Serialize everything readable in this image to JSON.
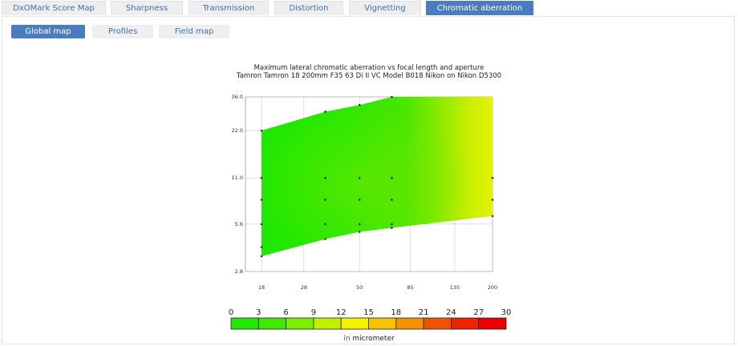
{
  "tabs": [
    {
      "label": "DxOMark Score Map",
      "active": false
    },
    {
      "label": "Sharpness",
      "active": false
    },
    {
      "label": "Transmission",
      "active": false
    },
    {
      "label": "Distortion",
      "active": false
    },
    {
      "label": "Vignetting",
      "active": false
    },
    {
      "label": "Chromatic aberration",
      "active": true
    }
  ],
  "subtabs": [
    {
      "label": "Global map",
      "active": true
    },
    {
      "label": "Profiles",
      "active": false
    },
    {
      "label": "Field map",
      "active": false
    }
  ],
  "unit_prefix": "in",
  "unit_suffix": " micrometer",
  "chart_data": {
    "type": "heatmap",
    "title": "Maximum lateral chromatic aberration vs focal length and aperture",
    "subtitle": "Tamron Tamron 18 200mm F35 63 Di II VC Model B018 Nikon on Nikon D5300",
    "xlabel": "",
    "ylabel": "",
    "x_scale": "log",
    "y_scale": "log",
    "x_ticks": [
      18,
      28,
      50,
      85,
      135,
      200
    ],
    "y_ticks": [
      2.8,
      5.6,
      11.0,
      22.0,
      36.0
    ],
    "y_tick_labels": [
      "2.8",
      "5.6",
      "11.0",
      "22.0",
      "36.0"
    ],
    "xlim": [
      18,
      200
    ],
    "ylim": [
      2.8,
      36.0
    ],
    "grid": true,
    "region": {
      "min_aperture": [
        [
          18,
          3.5
        ],
        [
          35,
          4.5
        ],
        [
          50,
          5.0
        ],
        [
          70,
          5.3
        ],
        [
          200,
          6.3
        ]
      ],
      "max_aperture": [
        [
          18,
          22.0
        ],
        [
          35,
          29.0
        ],
        [
          50,
          32.0
        ],
        [
          70,
          36.0
        ],
        [
          200,
          36.0
        ]
      ]
    },
    "measured_points": [
      {
        "x": 18,
        "y": 3.5
      },
      {
        "x": 18,
        "y": 4.0
      },
      {
        "x": 18,
        "y": 5.6
      },
      {
        "x": 18,
        "y": 8.0
      },
      {
        "x": 18,
        "y": 11.0
      },
      {
        "x": 18,
        "y": 22.0
      },
      {
        "x": 35,
        "y": 4.5
      },
      {
        "x": 35,
        "y": 5.6
      },
      {
        "x": 35,
        "y": 8.0
      },
      {
        "x": 35,
        "y": 11.0
      },
      {
        "x": 35,
        "y": 29.0
      },
      {
        "x": 50,
        "y": 5.0
      },
      {
        "x": 50,
        "y": 5.6
      },
      {
        "x": 50,
        "y": 8.0
      },
      {
        "x": 50,
        "y": 11.0
      },
      {
        "x": 50,
        "y": 32.0
      },
      {
        "x": 70,
        "y": 5.3
      },
      {
        "x": 70,
        "y": 5.6
      },
      {
        "x": 70,
        "y": 8.0
      },
      {
        "x": 70,
        "y": 11.0
      },
      {
        "x": 70,
        "y": 36.0
      },
      {
        "x": 200,
        "y": 6.3
      },
      {
        "x": 200,
        "y": 8.0
      },
      {
        "x": 200,
        "y": 11.0
      }
    ],
    "values_description": "lateral chromatic aberration about 3-6 micrometer at short focal lengths rising to about 12-13 micrometer at 200mm small apertures",
    "colorbar": {
      "ticks": [
        0,
        3,
        6,
        9,
        12,
        15,
        18,
        21,
        24,
        27,
        30
      ],
      "colors": [
        "#22e800",
        "#22e800",
        "#40e800",
        "#7cec00",
        "#bff000",
        "#f3f300",
        "#f6c300",
        "#f29200",
        "#ef5300",
        "#ee2200",
        "#ee0000"
      ]
    }
  }
}
